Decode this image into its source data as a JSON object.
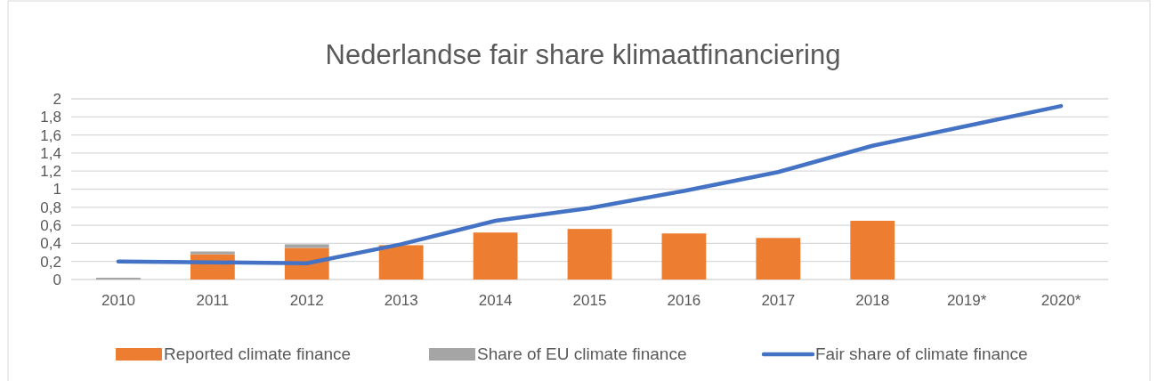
{
  "chart_data": {
    "type": "bar",
    "title": "Nederlandse fair share klimaatfinanciering",
    "categories": [
      "2010",
      "2011",
      "2012",
      "2013",
      "2014",
      "2015",
      "2016",
      "2017",
      "2018",
      "2019*",
      "2020*"
    ],
    "stacked": true,
    "series": [
      {
        "name": "Reported climate finance",
        "color": "#ed7d31",
        "values": [
          0,
          0.28,
          0.35,
          0.38,
          0.52,
          0.56,
          0.51,
          0.46,
          0.65,
          null,
          null
        ]
      },
      {
        "name": "Share of EU climate finance",
        "color": "#a5a5a5",
        "values": [
          0.02,
          0.03,
          0.04,
          0,
          0,
          0,
          0,
          0,
          0,
          null,
          null
        ]
      },
      {
        "name": "Fair share of climate finance",
        "type": "line",
        "color": "#4472c4",
        "values": [
          0.2,
          0.19,
          0.18,
          0.39,
          0.65,
          0.79,
          0.98,
          1.19,
          1.48,
          1.7,
          1.92
        ]
      }
    ],
    "ylim": [
      0,
      2
    ],
    "yticks": [
      0,
      {
        "value": 0.2,
        "label": "0,2"
      },
      {
        "value": 0.4,
        "label": "0,4"
      },
      {
        "value": 0.6,
        "label": "0,6"
      },
      {
        "value": 0.8,
        "label": "0,8"
      },
      1,
      {
        "value": 1.2,
        "label": "1,2"
      },
      {
        "value": 1.4,
        "label": "1,4"
      },
      {
        "value": 1.6,
        "label": "1,6"
      },
      {
        "value": 1.8,
        "label": "1,8"
      },
      2
    ],
    "grid": "y",
    "legend": "bottom",
    "marker": "none",
    "line_style": "solid"
  }
}
